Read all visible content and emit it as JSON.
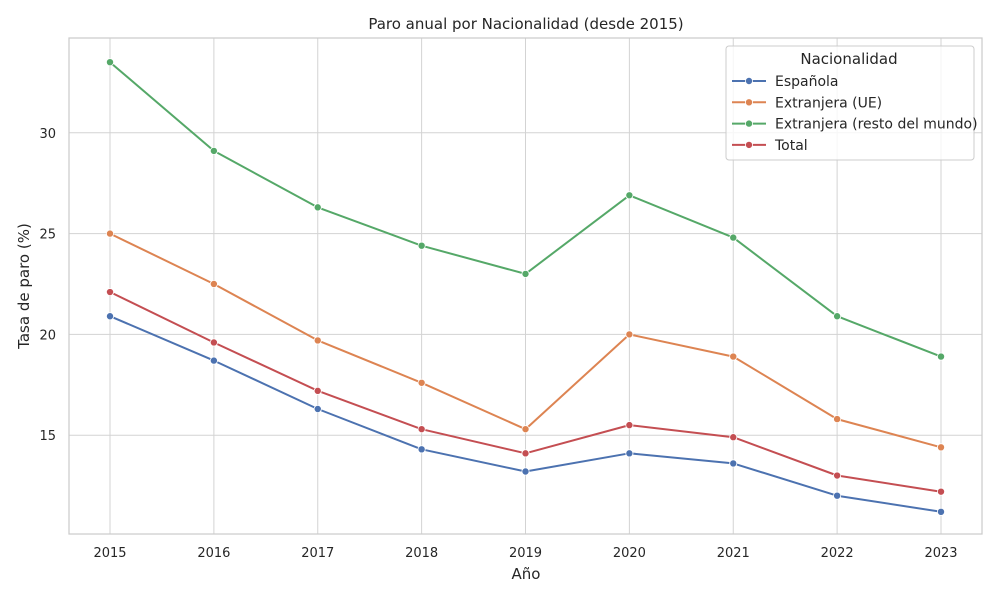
{
  "chart_data": {
    "type": "line",
    "title": "Paro anual por Nacionalidad (desde 2015)",
    "xlabel": "Año",
    "ylabel": "Tasa de paro (%)",
    "x": [
      2015,
      2016,
      2017,
      2018,
      2019,
      2020,
      2021,
      2022,
      2023
    ],
    "x_tick_labels": [
      "2015",
      "2016",
      "2017",
      "2018",
      "2019",
      "2020",
      "2021",
      "2022",
      "2023"
    ],
    "y_ticks": [
      15,
      20,
      25,
      30
    ],
    "y_tick_labels": [
      "15",
      "20",
      "25",
      "30"
    ],
    "ylim": [
      10.1,
      34.7
    ],
    "grid": true,
    "legend_title": "Nacionalidad",
    "legend_position": "top-right",
    "series": [
      {
        "name": "Española",
        "color": "#4c72b0",
        "values": [
          20.9,
          18.7,
          16.3,
          14.3,
          13.2,
          14.1,
          13.6,
          12.0,
          11.2
        ]
      },
      {
        "name": "Extranjera (UE)",
        "color": "#dd8452",
        "values": [
          25.0,
          22.5,
          19.7,
          17.6,
          15.3,
          20.0,
          18.9,
          15.8,
          14.4
        ]
      },
      {
        "name": "Extranjera (resto del mundo)",
        "color": "#55a868",
        "values": [
          33.5,
          29.1,
          26.3,
          24.4,
          23.0,
          26.9,
          24.8,
          20.9,
          18.9
        ]
      },
      {
        "name": "Total",
        "color": "#c44e52",
        "values": [
          22.1,
          19.6,
          17.2,
          15.3,
          14.1,
          15.5,
          14.9,
          13.0,
          12.2
        ]
      }
    ]
  }
}
